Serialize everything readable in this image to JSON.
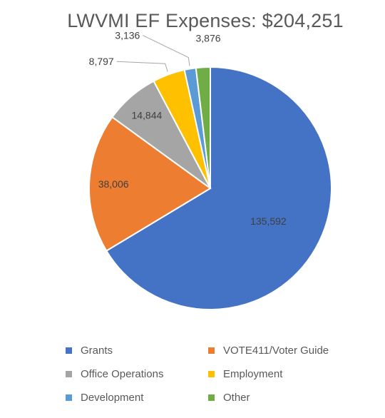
{
  "chart_data": {
    "type": "pie",
    "title": "LWVMI EF Expenses:  $204,251",
    "categories": [
      "Grants",
      "VOTE411/Voter Guide",
      "Office Operations",
      "Employment",
      "Development",
      "Other"
    ],
    "values": [
      135592,
      38006,
      14844,
      8797,
      3136,
      3876
    ],
    "data_labels": [
      "135,592",
      "38,006",
      "14,844",
      "8,797",
      "3,136",
      "3,876"
    ],
    "colors": [
      "#4472C4",
      "#ED7D31",
      "#A5A5A5",
      "#FFC000",
      "#5B9BD5",
      "#70AD47"
    ],
    "legend_position": "bottom"
  }
}
